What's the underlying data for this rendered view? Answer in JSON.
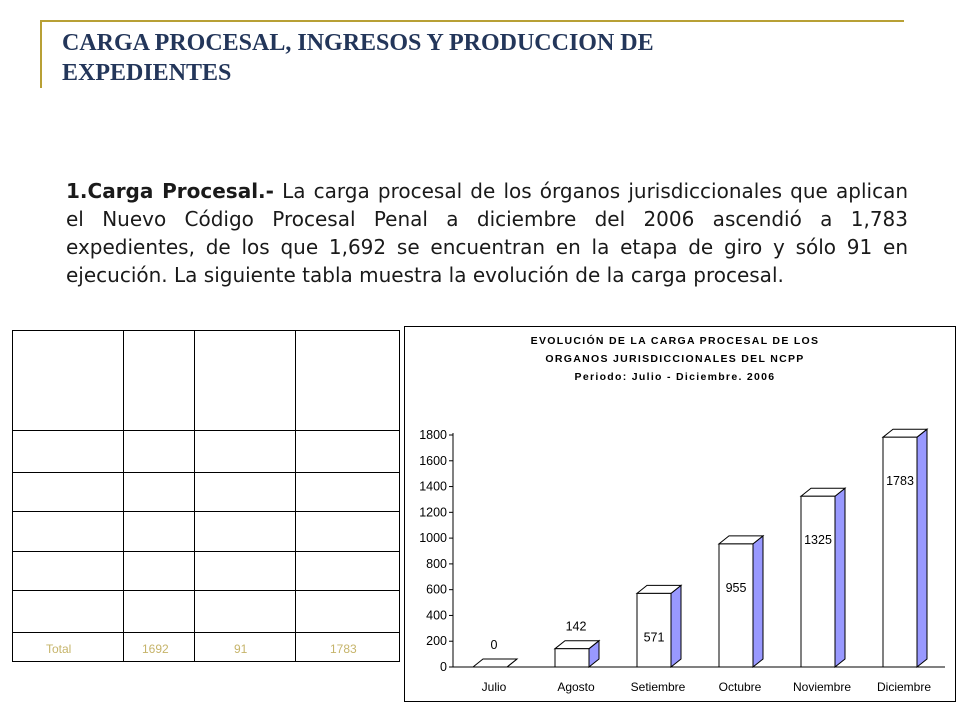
{
  "slide": {
    "title": "CARGA PROCESAL, INGRESOS Y PRODUCCION DE\nEXPEDIENTES",
    "paragraph_lead": "1.Carga Procesal.-",
    "paragraph_text": " La carga procesal de los órganos jurisdiccionales que aplican el Nuevo Código Procesal Penal a diciembre del 2006 ascendió a 1,783 expedientes, de los que 1,692 se encuentran en la etapa de giro y sólo 91 en ejecución. La siguiente tabla muestra la evolución de la carga procesal."
  },
  "table": {
    "footer_cells": [
      "Total",
      "1692",
      "91",
      "1783"
    ]
  },
  "colors": {
    "title": "#23365a",
    "accent_line": "#b8a035",
    "bar_front": "#ffffff",
    "bar_side": "#9999ff",
    "bar_top": "#ffffff"
  },
  "chart_data": {
    "type": "bar",
    "title_lines": [
      "EVOLUCIÓN DE LA CARGA PROCESAL DE LOS",
      "ORGANOS JURISDICCIONALES DEL NCPP",
      "Periodo: Julio - Diciembre. 2006"
    ],
    "categories": [
      "Julio",
      "Agosto",
      "Setiembre",
      "Octubre",
      "Noviembre",
      "Diciembre"
    ],
    "values": [
      0,
      142,
      571,
      955,
      1325,
      1783
    ],
    "data_labels": [
      "0",
      "142",
      "571",
      "955",
      "1325",
      "1783"
    ],
    "ylim": [
      0,
      1800
    ],
    "yticks": [
      0,
      200,
      400,
      600,
      800,
      1000,
      1200,
      1400,
      1600,
      1800
    ],
    "ytick_labels": [
      "0",
      "200",
      "400",
      "600",
      "800",
      "1000",
      "1200",
      "1400",
      "1600",
      "1800"
    ],
    "grid": false,
    "legend": "none"
  }
}
